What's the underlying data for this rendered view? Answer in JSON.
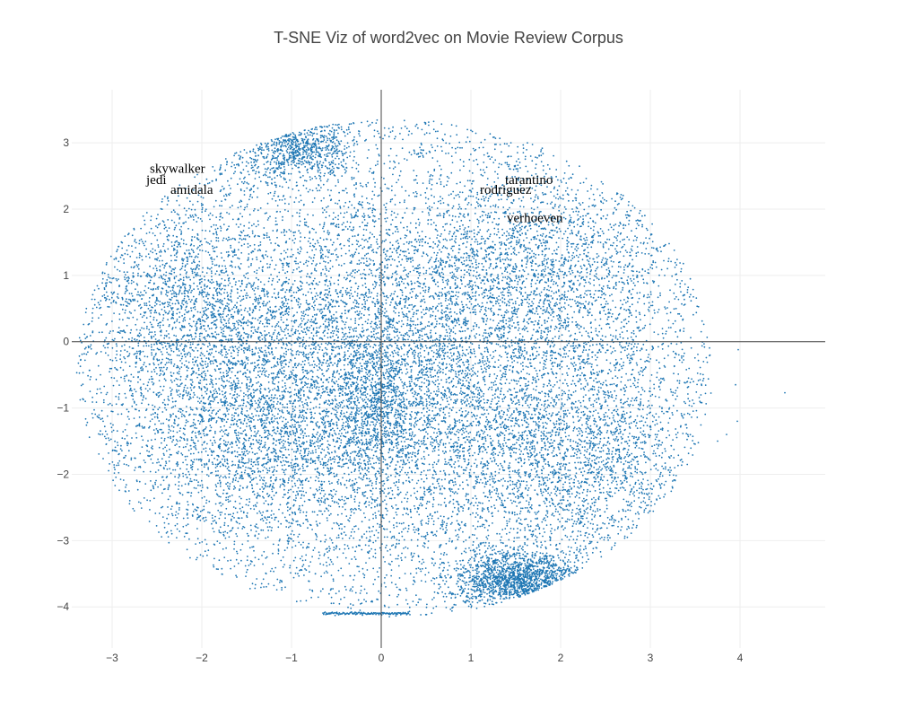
{
  "chart_data": {
    "type": "scatter",
    "title": "T-SNE Viz of word2vec on Movie Review Corpus",
    "xlabel": "",
    "ylabel": "",
    "xlim": [
      -3.45,
      4.95
    ],
    "ylim": [
      -4.62,
      3.8
    ],
    "x_ticks": [
      -3,
      -2,
      -1,
      0,
      1,
      2,
      3,
      4
    ],
    "y_ticks": [
      -4,
      -3,
      -2,
      -1,
      0,
      1,
      2,
      3
    ],
    "x_tick_labels": [
      "−3",
      "−2",
      "−1",
      "0",
      "1",
      "2",
      "3",
      "4"
    ],
    "y_tick_labels": [
      "−4",
      "−3",
      "−2",
      "−1",
      "0",
      "1",
      "2",
      "3"
    ],
    "grid": true,
    "zeroline_x": true,
    "zeroline_y": true,
    "marker_color": "#1f77b4",
    "series": [
      {
        "points_description_note": "",
        "clusters": [
          {
            "cx": 0.0,
            "cy": -0.5,
            "sx": 1.55,
            "sy": 1.55,
            "n": 9000
          },
          {
            "cx": 1.55,
            "cy": -3.6,
            "sx": 0.38,
            "sy": 0.22,
            "n": 1400
          },
          {
            "cx": -1.0,
            "cy": 2.95,
            "sx": 0.35,
            "sy": 0.25,
            "n": 700
          },
          {
            "cx": -2.2,
            "cy": 0.6,
            "sx": 0.55,
            "sy": 0.8,
            "n": 1200
          },
          {
            "cx": 1.9,
            "cy": 1.2,
            "sx": 0.8,
            "sy": 0.8,
            "n": 1300
          },
          {
            "cx": 2.3,
            "cy": -1.8,
            "sx": 0.7,
            "sy": 0.8,
            "n": 1400
          },
          {
            "cx": -1.4,
            "cy": -1.5,
            "sx": 0.6,
            "sy": 0.7,
            "n": 900
          },
          {
            "cx": -0.05,
            "cy": -0.9,
            "sx": 0.2,
            "sy": 0.45,
            "n": 500
          }
        ],
        "line_segment": {
          "x0": -0.65,
          "x1": 0.3,
          "y": -4.1,
          "n": 120
        },
        "outliers": [
          {
            "x": 4.5,
            "y": -0.77
          },
          {
            "x": 3.98,
            "y": -0.12
          },
          {
            "x": 3.95,
            "y": -0.65
          },
          {
            "x": 3.97,
            "y": -1.2
          },
          {
            "x": 3.75,
            "y": -1.5
          },
          {
            "x": 3.85,
            "y": -1.4
          },
          {
            "x": -3.35,
            "y": -0.27
          },
          {
            "x": -3.1,
            "y": -1.2
          }
        ]
      }
    ],
    "annotations": [
      {
        "text": "skywalker",
        "x": -2.58,
        "y": 2.55
      },
      {
        "text": "jedi",
        "x": -2.62,
        "y": 2.38
      },
      {
        "text": "amidala",
        "x": -2.35,
        "y": 2.23
      },
      {
        "text": "tarantino",
        "x": 1.38,
        "y": 2.38
      },
      {
        "text": "rodriguez",
        "x": 1.1,
        "y": 2.23
      },
      {
        "text": "verhoeven",
        "x": 1.4,
        "y": 1.8
      }
    ]
  }
}
